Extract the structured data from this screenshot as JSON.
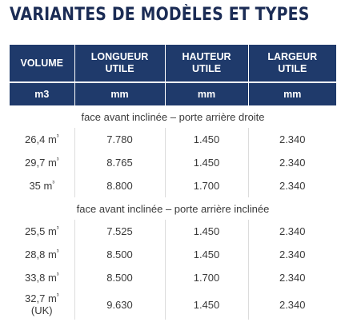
{
  "title": "VARIANTES DE MODÈLES ET TYPES",
  "headers": [
    "VOLUME",
    "LONGUEUR UTILE",
    "HAUTEUR UTILE",
    "LARGEUR UTILE"
  ],
  "units": [
    "m3",
    "mm",
    "mm",
    "mm"
  ],
  "colors": {
    "header_bg": "#1f3a6b",
    "title": "#1b2c55"
  },
  "sections": [
    {
      "label": "face avant inclinée – porte arrière droite",
      "rows": [
        {
          "volume": "26,4 m³",
          "longueur": "7.780",
          "hauteur": "1.450",
          "largeur": "2.340"
        },
        {
          "volume": "29,7 m³",
          "longueur": "8.765",
          "hauteur": "1.450",
          "largeur": "2.340"
        },
        {
          "volume": "35 m³",
          "longueur": "8.800",
          "hauteur": "1.700",
          "largeur": "2.340"
        }
      ]
    },
    {
      "label": "face avant inclinée – porte arrière inclinée",
      "rows": [
        {
          "volume": "25,5 m³",
          "longueur": "7.525",
          "hauteur": "1.450",
          "largeur": "2.340"
        },
        {
          "volume": "28,8 m³",
          "longueur": "8.500",
          "hauteur": "1.450",
          "largeur": "2.340"
        },
        {
          "volume": "33,8 m³",
          "longueur": "8.500",
          "hauteur": "1.700",
          "largeur": "2.340"
        },
        {
          "volume": "32,7 m³ (UK)",
          "longueur": "9.630",
          "hauteur": "1.450",
          "largeur": "2.340"
        }
      ]
    }
  ]
}
